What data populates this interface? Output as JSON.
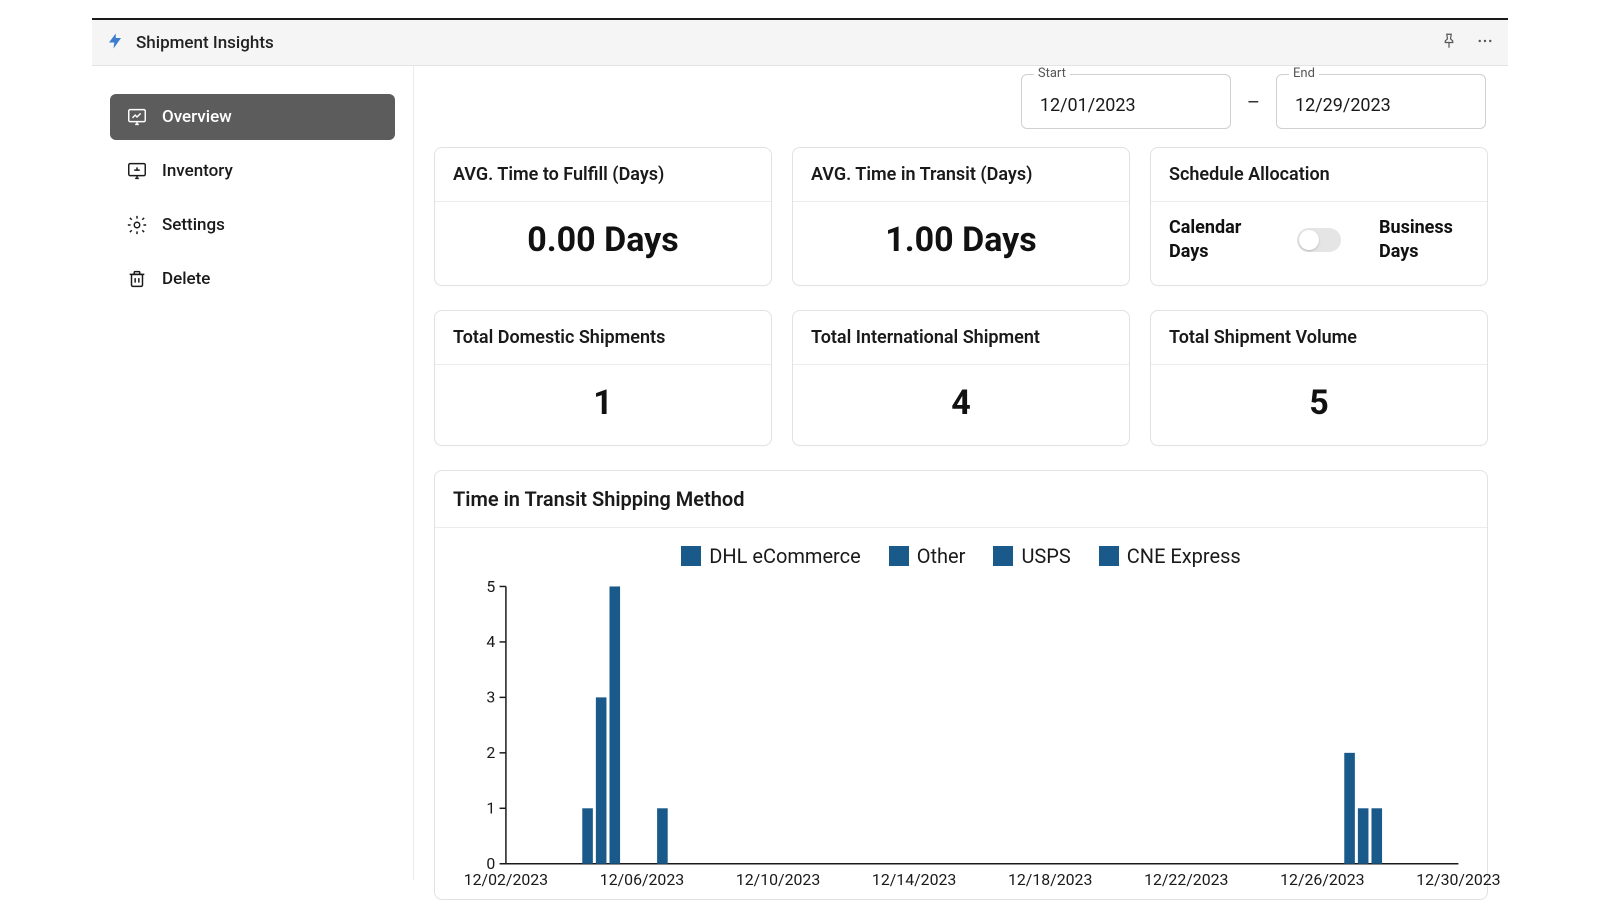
{
  "app": {
    "title": "Shipment Insights"
  },
  "sidebar": {
    "items": [
      {
        "key": "overview",
        "label": "Overview",
        "active": true
      },
      {
        "key": "inventory",
        "label": "Inventory",
        "active": false
      },
      {
        "key": "settings",
        "label": "Settings",
        "active": false
      },
      {
        "key": "delete",
        "label": "Delete",
        "active": false
      }
    ]
  },
  "dateRange": {
    "startLabel": "Start",
    "start": "12/01/2023",
    "endLabel": "End",
    "end": "12/29/2023",
    "dash": "–"
  },
  "metrics": {
    "fulfill": {
      "title": "AVG. Time to Fulfill (Days)",
      "value": "0.00 Days"
    },
    "transit": {
      "title": "AVG. Time in Transit (Days)",
      "value": "1.00 Days"
    },
    "schedule": {
      "title": "Schedule Allocation",
      "left": "Calendar Days",
      "right": "Business Days",
      "toggle": "left"
    },
    "domestic": {
      "title": "Total Domestic Shipments",
      "value": "1"
    },
    "intl": {
      "title": "Total International Shipment",
      "value": "4"
    },
    "volume": {
      "title": "Total Shipment Volume",
      "value": "5"
    }
  },
  "chart": {
    "title": "Time in Transit Shipping Method",
    "type": "bar",
    "legend": [
      {
        "label": "DHL eCommerce",
        "color": "#195a8a"
      },
      {
        "label": "Other",
        "color": "#195a8a"
      },
      {
        "label": "USPS",
        "color": "#195a8a"
      },
      {
        "label": "CNE Express",
        "color": "#195a8a"
      }
    ],
    "y": {
      "min": 0,
      "max": 5,
      "ticks": [
        0,
        1,
        2,
        3,
        4,
        5
      ]
    },
    "x": {
      "ticks": [
        "12/02/2023",
        "12/06/2023",
        "12/10/2023",
        "12/14/2023",
        "12/18/2023",
        "12/22/2023",
        "12/26/2023",
        "12/30/2023"
      ]
    },
    "bars": [
      {
        "xIndex": 0.6,
        "value": 1,
        "color": "#195a8a"
      },
      {
        "xIndex": 0.7,
        "value": 3,
        "color": "#195a8a"
      },
      {
        "xIndex": 0.8,
        "value": 5,
        "color": "#195a8a"
      },
      {
        "xIndex": 1.15,
        "value": 1,
        "color": "#195a8a"
      },
      {
        "xIndex": 6.2,
        "value": 2,
        "color": "#195a8a"
      },
      {
        "xIndex": 6.3,
        "value": 1,
        "color": "#195a8a"
      },
      {
        "xIndex": 6.4,
        "value": 1,
        "color": "#195a8a"
      }
    ],
    "barWidthPx": 10,
    "axisColor": "#1a1a1a",
    "background": "#ffffff",
    "label_fontsize": 15
  }
}
